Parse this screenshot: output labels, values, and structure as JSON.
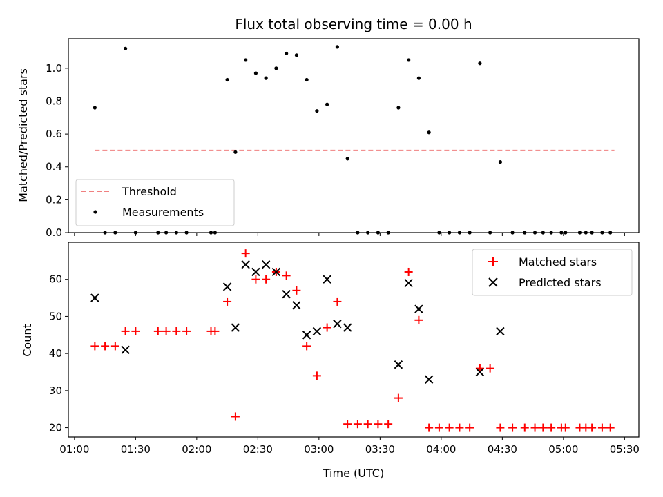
{
  "chart_data": [
    {
      "type": "scatter",
      "title": "Flux total observing time = 0.00 h",
      "xlabel": "",
      "ylabel": "Matched/Predicted stars",
      "xlim": [
        "00:57",
        "05:37"
      ],
      "ylim": [
        0,
        1.18
      ],
      "x_ticks": [
        "01:00",
        "01:30",
        "02:00",
        "02:30",
        "03:00",
        "03:30",
        "04:00",
        "04:30",
        "05:00",
        "05:30"
      ],
      "y_ticks": [
        0.0,
        0.2,
        0.4,
        0.6,
        0.8,
        1.0
      ],
      "y_tick_labels": [
        "0.0",
        "0.2",
        "0.4",
        "0.6",
        "0.8",
        "1.0"
      ],
      "grid": false,
      "legend_position": "lower-left",
      "series": [
        {
          "name": "Threshold",
          "style": "dashed-line",
          "color": "#f08080",
          "x": [
            "01:10",
            "05:25"
          ],
          "y": [
            0.5,
            0.5
          ]
        },
        {
          "name": "Measurements",
          "style": "dot",
          "color": "#000000",
          "x": [
            "01:10",
            "01:15",
            "01:20",
            "01:25",
            "01:30",
            "01:41",
            "01:45",
            "01:50",
            "01:55",
            "02:07",
            "02:09",
            "02:15",
            "02:19",
            "02:24",
            "02:29",
            "02:34",
            "02:39",
            "02:44",
            "02:49",
            "02:54",
            "02:59",
            "03:04",
            "03:09",
            "03:14",
            "03:19",
            "03:24",
            "03:29",
            "03:34",
            "03:39",
            "03:44",
            "03:49",
            "03:54",
            "03:59",
            "04:04",
            "04:09",
            "04:14",
            "04:19",
            "04:24",
            "04:29",
            "04:35",
            "04:41",
            "04:46",
            "04:50",
            "04:54",
            "04:59",
            "05:01",
            "05:08",
            "05:11",
            "05:14",
            "05:19",
            "05:23"
          ],
          "y": [
            0.76,
            0.0,
            0.0,
            1.12,
            0.0,
            0.0,
            0.0,
            0.0,
            0.0,
            0.0,
            0.0,
            0.93,
            0.49,
            1.05,
            0.97,
            0.94,
            1.0,
            1.09,
            1.08,
            0.93,
            0.74,
            0.78,
            1.13,
            0.45,
            0.0,
            0.0,
            0.0,
            0.0,
            0.76,
            1.05,
            0.94,
            0.61,
            0.0,
            0.0,
            0.0,
            0.0,
            1.03,
            0.0,
            0.43,
            0.0,
            0.0,
            0.0,
            0.0,
            0.0,
            0.0,
            0.0,
            0.0,
            0.0,
            0.0,
            0.0,
            0.0
          ]
        }
      ]
    },
    {
      "type": "scatter",
      "title": "",
      "xlabel": "Time (UTC)",
      "ylabel": "Count",
      "xlim": [
        "00:57",
        "05:37"
      ],
      "ylim": [
        17.5,
        70
      ],
      "x_ticks": [
        "01:00",
        "01:30",
        "02:00",
        "02:30",
        "03:00",
        "03:30",
        "04:00",
        "04:30",
        "05:00",
        "05:30"
      ],
      "y_ticks": [
        20,
        30,
        40,
        50,
        60
      ],
      "y_tick_labels": [
        "20",
        "30",
        "40",
        "50",
        "60"
      ],
      "grid": false,
      "legend_position": "upper-right",
      "series": [
        {
          "name": "Matched stars",
          "style": "plus",
          "color": "#ff0000",
          "x": [
            "01:10",
            "01:15",
            "01:20",
            "01:25",
            "01:30",
            "01:41",
            "01:45",
            "01:50",
            "01:55",
            "02:07",
            "02:09",
            "02:15",
            "02:19",
            "02:24",
            "02:29",
            "02:34",
            "02:39",
            "02:44",
            "02:49",
            "02:54",
            "02:59",
            "03:04",
            "03:09",
            "03:14",
            "03:19",
            "03:24",
            "03:29",
            "03:34",
            "03:39",
            "03:44",
            "03:49",
            "03:54",
            "03:59",
            "04:04",
            "04:09",
            "04:14",
            "04:19",
            "04:24",
            "04:29",
            "04:35",
            "04:41",
            "04:46",
            "04:50",
            "04:54",
            "04:59",
            "05:01",
            "05:08",
            "05:11",
            "05:14",
            "05:19",
            "05:23"
          ],
          "y": [
            42,
            42,
            42,
            46,
            46,
            46,
            46,
            46,
            46,
            46,
            46,
            54,
            23,
            67,
            60,
            60,
            62,
            61,
            57,
            42,
            34,
            47,
            54,
            21,
            21,
            21,
            21,
            21,
            28,
            62,
            49,
            20,
            20,
            20,
            20,
            20,
            36,
            36,
            20,
            20,
            20,
            20,
            20,
            20,
            20,
            20,
            20,
            20,
            20,
            20,
            20
          ]
        },
        {
          "name": "Predicted stars",
          "style": "x",
          "color": "#000000",
          "x": [
            "01:10",
            "01:25",
            "02:15",
            "02:19",
            "02:24",
            "02:29",
            "02:34",
            "02:39",
            "02:44",
            "02:49",
            "02:54",
            "02:59",
            "03:04",
            "03:09",
            "03:14",
            "03:39",
            "03:44",
            "03:49",
            "03:54",
            "04:19",
            "04:29"
          ],
          "y": [
            55,
            41,
            58,
            47,
            64,
            62,
            64,
            62,
            56,
            53,
            45,
            46,
            60,
            48,
            47,
            37,
            59,
            52,
            33,
            35,
            46
          ]
        }
      ]
    }
  ]
}
